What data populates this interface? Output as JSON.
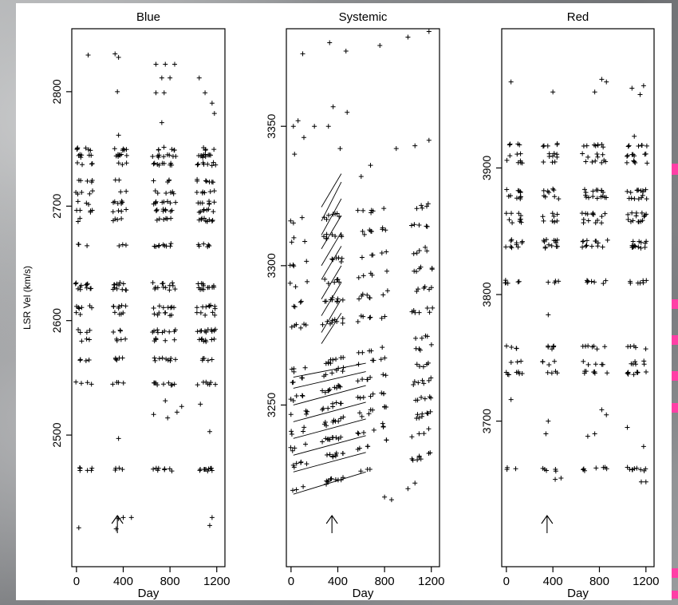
{
  "chart_data": {
    "type": "scatter",
    "panels": [
      {
        "title": "Blue",
        "xlabel": "Day",
        "ylabel": "LSR Vel (km/s)",
        "xticks": [
          0,
          400,
          800,
          1200
        ],
        "yticks": [
          2500,
          2600,
          2700,
          2800
        ],
        "xlim": [
          -40,
          1270
        ],
        "ylim": [
          2385,
          2855
        ],
        "epochs": [
          20,
          110,
          340,
          400,
          680,
          760,
          820,
          1060,
          1110,
          1160
        ],
        "features": [
          2470,
          2545,
          2566,
          2583,
          2591,
          2606,
          2612,
          2628,
          2632,
          2666,
          2688,
          2696,
          2703,
          2712,
          2722,
          2737,
          2744,
          2750
        ],
        "sparse_points": [
          {
            "x": 100,
            "y": 2832
          },
          {
            "x": 330,
            "y": 2833
          },
          {
            "x": 360,
            "y": 2830
          },
          {
            "x": 350,
            "y": 2800
          },
          {
            "x": 680,
            "y": 2824
          },
          {
            "x": 760,
            "y": 2824
          },
          {
            "x": 840,
            "y": 2824
          },
          {
            "x": 730,
            "y": 2812
          },
          {
            "x": 800,
            "y": 2812
          },
          {
            "x": 680,
            "y": 2799
          },
          {
            "x": 750,
            "y": 2799
          },
          {
            "x": 1050,
            "y": 2812
          },
          {
            "x": 1160,
            "y": 2790
          },
          {
            "x": 1180,
            "y": 2781
          },
          {
            "x": 1100,
            "y": 2799
          },
          {
            "x": 360,
            "y": 2762
          },
          {
            "x": 730,
            "y": 2773
          },
          {
            "x": 400,
            "y": 2750
          },
          {
            "x": 780,
            "y": 2515
          },
          {
            "x": 860,
            "y": 2520
          },
          {
            "x": 900,
            "y": 2525
          },
          {
            "x": 1140,
            "y": 2503
          },
          {
            "x": 1060,
            "y": 2527
          },
          {
            "x": 360,
            "y": 2497
          },
          {
            "x": 20,
            "y": 2419
          },
          {
            "x": 340,
            "y": 2418
          },
          {
            "x": 360,
            "y": 2427
          },
          {
            "x": 400,
            "y": 2428
          },
          {
            "x": 470,
            "y": 2428
          },
          {
            "x": 1140,
            "y": 2421
          },
          {
            "x": 1160,
            "y": 2428
          },
          {
            "x": 660,
            "y": 2518
          },
          {
            "x": 760,
            "y": 2530
          }
        ],
        "marker_day": 350
      },
      {
        "title": "Systemic",
        "xlabel": "Day",
        "ylabel": "",
        "xticks": [
          0,
          400,
          800,
          1200
        ],
        "yticks": [
          3250,
          3300,
          3350
        ],
        "xlim": [
          -40,
          1270
        ],
        "ylim": [
          3192,
          3385
        ],
        "epochs": [
          20,
          110,
          290,
          330,
          380,
          420,
          600,
          680,
          800,
          1060,
          1120,
          1180
        ],
        "high_features": [
          {
            "y0": 3300,
            "rate": 0.005
          },
          {
            "y0": 3293,
            "rate": 0.005
          },
          {
            "y0": 3286,
            "rate": 0.005
          },
          {
            "y0": 3278,
            "rate": 0.005
          },
          {
            "y0": 3309,
            "rate": 0.005
          },
          {
            "y0": 3316,
            "rate": 0.005
          }
        ],
        "low_features": [
          {
            "y0": 3219,
            "rate": 0.011
          },
          {
            "y0": 3228,
            "rate": 0.011
          },
          {
            "y0": 3234,
            "rate": 0.011
          },
          {
            "y0": 3240,
            "rate": 0.011
          },
          {
            "y0": 3246,
            "rate": 0.011
          },
          {
            "y0": 3252,
            "rate": 0.011
          },
          {
            "y0": 3258,
            "rate": 0.011
          },
          {
            "y0": 3262,
            "rate": 0.011
          }
        ],
        "steep_lines": [
          {
            "x0": 260,
            "x1": 430,
            "y0": 3272,
            "y1": 3283
          },
          {
            "x0": 260,
            "x1": 430,
            "y0": 3276,
            "y1": 3288
          },
          {
            "x0": 260,
            "x1": 430,
            "y0": 3282,
            "y1": 3294
          },
          {
            "x0": 260,
            "x1": 430,
            "y0": 3288,
            "y1": 3300
          },
          {
            "x0": 260,
            "x1": 430,
            "y0": 3295,
            "y1": 3307
          },
          {
            "x0": 260,
            "x1": 430,
            "y0": 3300,
            "y1": 3312
          },
          {
            "x0": 260,
            "x1": 430,
            "y0": 3306,
            "y1": 3318
          },
          {
            "x0": 260,
            "x1": 430,
            "y0": 3311,
            "y1": 3324
          },
          {
            "x0": 260,
            "x1": 430,
            "y0": 3316,
            "y1": 3330
          },
          {
            "x0": 260,
            "x1": 430,
            "y0": 3321,
            "y1": 3333
          }
        ],
        "shallow_lines": [
          {
            "x0": 20,
            "x1": 640,
            "y0": 3218,
            "y1": 3226
          },
          {
            "x0": 20,
            "x1": 640,
            "y0": 3226,
            "y1": 3233
          },
          {
            "x0": 20,
            "x1": 640,
            "y0": 3232,
            "y1": 3239
          },
          {
            "x0": 20,
            "x1": 640,
            "y0": 3238,
            "y1": 3245
          },
          {
            "x0": 20,
            "x1": 640,
            "y0": 3244,
            "y1": 3251
          },
          {
            "x0": 20,
            "x1": 640,
            "y0": 3250,
            "y1": 3257
          },
          {
            "x0": 20,
            "x1": 640,
            "y0": 3256,
            "y1": 3262
          },
          {
            "x0": 20,
            "x1": 640,
            "y0": 3260,
            "y1": 3265
          }
        ],
        "sparse_points": [
          {
            "x": 100,
            "y": 3376
          },
          {
            "x": 330,
            "y": 3380
          },
          {
            "x": 470,
            "y": 3377
          },
          {
            "x": 760,
            "y": 3379
          },
          {
            "x": 1000,
            "y": 3382
          },
          {
            "x": 1180,
            "y": 3384
          },
          {
            "x": 20,
            "y": 3350
          },
          {
            "x": 60,
            "y": 3352
          },
          {
            "x": 110,
            "y": 3346
          },
          {
            "x": 200,
            "y": 3350
          },
          {
            "x": 320,
            "y": 3350
          },
          {
            "x": 360,
            "y": 3357
          },
          {
            "x": 420,
            "y": 3342
          },
          {
            "x": 480,
            "y": 3355
          },
          {
            "x": 30,
            "y": 3340
          },
          {
            "x": 600,
            "y": 3332
          },
          {
            "x": 680,
            "y": 3336
          },
          {
            "x": 900,
            "y": 3342
          },
          {
            "x": 1060,
            "y": 3343
          },
          {
            "x": 1180,
            "y": 3345
          },
          {
            "x": 800,
            "y": 3217
          },
          {
            "x": 860,
            "y": 3216
          },
          {
            "x": 1000,
            "y": 3220
          },
          {
            "x": 1060,
            "y": 3222
          }
        ],
        "marker_day": 350
      },
      {
        "title": "Red",
        "xlabel": "Day",
        "ylabel": "",
        "xticks": [
          0,
          400,
          800,
          1200
        ],
        "yticks": [
          3700,
          3800,
          3900
        ],
        "xlim": [
          -40,
          1270
        ],
        "ylim": [
          3585,
          4010
        ],
        "epochs": [
          20,
          110,
          340,
          420,
          680,
          760,
          840,
          1060,
          1120,
          1180
        ],
        "features": [
          3662,
          3738,
          3746,
          3758,
          3810,
          3838,
          3842,
          3858,
          3863,
          3877,
          3882,
          3905,
          3910,
          3918
        ],
        "sparse_points": [
          {
            "x": 40,
            "y": 3968
          },
          {
            "x": 400,
            "y": 3960
          },
          {
            "x": 760,
            "y": 3960
          },
          {
            "x": 820,
            "y": 3970
          },
          {
            "x": 860,
            "y": 3968
          },
          {
            "x": 1080,
            "y": 3963
          },
          {
            "x": 1150,
            "y": 3958
          },
          {
            "x": 1180,
            "y": 3965
          },
          {
            "x": 1100,
            "y": 3925
          },
          {
            "x": 360,
            "y": 3784
          },
          {
            "x": 40,
            "y": 3717
          },
          {
            "x": 360,
            "y": 3700
          },
          {
            "x": 340,
            "y": 3690
          },
          {
            "x": 420,
            "y": 3654
          },
          {
            "x": 470,
            "y": 3655
          },
          {
            "x": 700,
            "y": 3688
          },
          {
            "x": 760,
            "y": 3690
          },
          {
            "x": 820,
            "y": 3709
          },
          {
            "x": 860,
            "y": 3705
          },
          {
            "x": 1040,
            "y": 3695
          },
          {
            "x": 1180,
            "y": 3680
          },
          {
            "x": 1160,
            "y": 3652
          },
          {
            "x": 1200,
            "y": 3652
          }
        ],
        "marker_day": 350
      }
    ]
  }
}
